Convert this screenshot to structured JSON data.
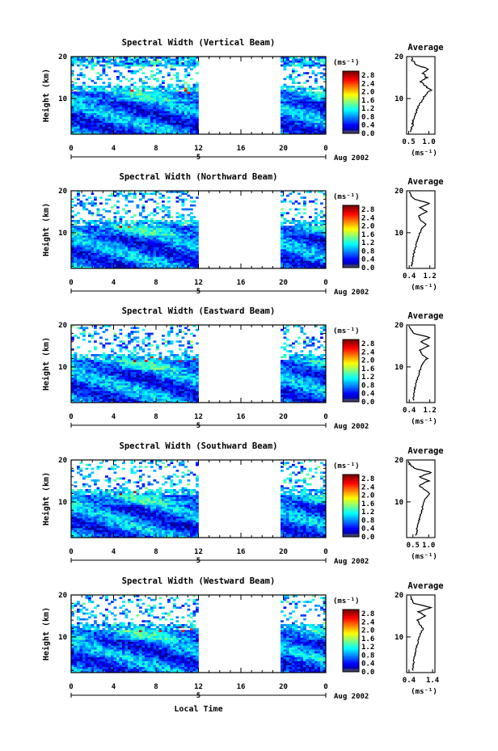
{
  "chart_data": [
    {
      "type": "heatmap",
      "title": "Spectral Width (Vertical Beam)",
      "ylabel": "Height (km)",
      "x_ticks": [
        "0",
        "4",
        "8",
        "12",
        "16",
        "20",
        "0"
      ],
      "y_ticks": [
        "20",
        "10"
      ],
      "xlim": [
        0,
        24
      ],
      "ylim": [
        1.5,
        20
      ],
      "date_label": "5",
      "month_label": "Aug 2002",
      "colorbar": {
        "unit": "(ms⁻¹)",
        "ticks": [
          "2.8",
          "2.4",
          "2.0",
          "1.6",
          "1.2",
          "0.8",
          "0.4",
          "0.0"
        ],
        "range": [
          0,
          3.0
        ]
      },
      "data_gap_hours": [
        12,
        19.5
      ],
      "profile": {
        "title": "Average",
        "unit": "(ms⁻¹)",
        "x_ticks": [
          "0.5",
          "1.0"
        ],
        "xlim": [
          0.45,
          1.15
        ],
        "y_ticks": [
          "20",
          "10"
        ],
        "heights": [
          2,
          3,
          4,
          5,
          6,
          7,
          8,
          9,
          10,
          11,
          12,
          13,
          14,
          15,
          16,
          17,
          18,
          19,
          20
        ],
        "values": [
          0.55,
          0.58,
          0.6,
          0.62,
          0.66,
          0.7,
          0.74,
          0.8,
          0.86,
          0.92,
          1.05,
          0.9,
          0.8,
          0.95,
          0.85,
          1.0,
          0.7,
          0.6,
          0.55
        ]
      }
    },
    {
      "type": "heatmap",
      "title": "Spectral Width (Northward Beam)",
      "ylabel": "Height (km)",
      "x_ticks": [
        "0",
        "4",
        "8",
        "12",
        "16",
        "20",
        "0"
      ],
      "y_ticks": [
        "20",
        "10"
      ],
      "xlim": [
        0,
        24
      ],
      "ylim": [
        1.5,
        20
      ],
      "date_label": "5",
      "month_label": "Aug 2002",
      "colorbar": {
        "unit": "(ms⁻¹)",
        "ticks": [
          "2.8",
          "2.4",
          "2.0",
          "1.6",
          "1.2",
          "0.8",
          "0.4",
          "0.0"
        ],
        "range": [
          0,
          3.0
        ]
      },
      "data_gap_hours": [
        12,
        19.5
      ],
      "profile": {
        "title": "Average",
        "unit": "(ms⁻¹)",
        "x_ticks": [
          "0.4",
          "1.2"
        ],
        "xlim": [
          0.3,
          1.4
        ],
        "y_ticks": [
          "20",
          "10"
        ],
        "heights": [
          2,
          3,
          4,
          5,
          6,
          7,
          8,
          9,
          10,
          11,
          12,
          13,
          14,
          15,
          16,
          17,
          18,
          19,
          20
        ],
        "values": [
          0.5,
          0.52,
          0.55,
          0.58,
          0.62,
          0.66,
          0.7,
          0.75,
          0.82,
          0.9,
          1.05,
          0.85,
          0.75,
          1.1,
          0.8,
          1.2,
          0.6,
          0.45,
          0.4
        ]
      }
    },
    {
      "type": "heatmap",
      "title": "Spectral Width (Eastward Beam)",
      "ylabel": "Height (km)",
      "x_ticks": [
        "0",
        "4",
        "8",
        "12",
        "16",
        "20",
        "0"
      ],
      "y_ticks": [
        "20",
        "10"
      ],
      "xlim": [
        0,
        24
      ],
      "ylim": [
        1.5,
        20
      ],
      "date_label": "5",
      "month_label": "Aug 2002",
      "colorbar": {
        "unit": "(ms⁻¹)",
        "ticks": [
          "2.8",
          "2.4",
          "2.0",
          "1.6",
          "1.2",
          "0.8",
          "0.4",
          "0.0"
        ],
        "range": [
          0,
          3.0
        ]
      },
      "data_gap_hours": [
        12,
        19.5
      ],
      "profile": {
        "title": "Average",
        "unit": "(ms⁻¹)",
        "x_ticks": [
          "0.4",
          "1.2"
        ],
        "xlim": [
          0.3,
          1.4
        ],
        "y_ticks": [
          "20",
          "10"
        ],
        "heights": [
          2,
          3,
          4,
          5,
          6,
          7,
          8,
          9,
          10,
          11,
          12,
          13,
          14,
          15,
          16,
          17,
          18,
          19,
          20
        ],
        "values": [
          0.55,
          0.58,
          0.6,
          0.62,
          0.66,
          0.7,
          0.76,
          0.8,
          0.86,
          0.95,
          1.1,
          0.9,
          0.8,
          1.15,
          0.85,
          1.2,
          0.6,
          0.45,
          0.4
        ]
      }
    },
    {
      "type": "heatmap",
      "title": "Spectral Width (Southward Beam)",
      "ylabel": "Height (km)",
      "x_ticks": [
        "0",
        "4",
        "8",
        "12",
        "16",
        "20",
        "0"
      ],
      "y_ticks": [
        "20",
        "10"
      ],
      "xlim": [
        0,
        24
      ],
      "ylim": [
        1.5,
        20
      ],
      "date_label": "5",
      "month_label": "Aug 2002",
      "colorbar": {
        "unit": "(ms⁻¹)",
        "ticks": [
          "2.8",
          "2.4",
          "2.0",
          "1.6",
          "1.2",
          "0.8",
          "0.4",
          "0.0"
        ],
        "range": [
          0,
          3.0
        ]
      },
      "data_gap_hours": [
        12,
        19.5
      ],
      "profile": {
        "title": "Average",
        "unit": "(ms⁻¹)",
        "x_ticks": [
          "0.5",
          "1.0"
        ],
        "xlim": [
          0.3,
          1.2
        ],
        "y_ticks": [
          "20",
          "10"
        ],
        "heights": [
          2,
          3,
          4,
          5,
          6,
          7,
          8,
          9,
          10,
          11,
          12,
          13,
          14,
          15,
          16,
          17,
          18,
          19,
          20
        ],
        "values": [
          0.6,
          0.62,
          0.64,
          0.66,
          0.7,
          0.74,
          0.78,
          0.82,
          0.86,
          0.9,
          1.05,
          0.85,
          0.7,
          1.0,
          0.7,
          1.1,
          0.55,
          0.4,
          0.35
        ]
      }
    },
    {
      "type": "heatmap",
      "title": "Spectral Width (Westward Beam)",
      "ylabel": "Height (km)",
      "xlabel": "Local Time",
      "x_ticks": [
        "0",
        "4",
        "8",
        "12",
        "16",
        "20",
        "0"
      ],
      "y_ticks": [
        "20",
        "10"
      ],
      "xlim": [
        0,
        24
      ],
      "ylim": [
        1.5,
        20
      ],
      "date_label": "5",
      "month_label": "Aug 2002",
      "colorbar": {
        "unit": "(ms⁻¹)",
        "ticks": [
          "2.8",
          "2.4",
          "2.0",
          "1.6",
          "1.2",
          "0.8",
          "0.4",
          "0.0"
        ],
        "range": [
          0,
          3.0
        ]
      },
      "data_gap_hours": [
        12,
        19.5
      ],
      "profile": {
        "title": "Average",
        "unit": "(ms⁻¹)",
        "x_ticks": [
          "0.4",
          "1.4"
        ],
        "xlim": [
          0.3,
          1.5
        ],
        "y_ticks": [
          "20",
          "10"
        ],
        "heights": [
          2,
          3,
          4,
          5,
          6,
          7,
          8,
          9,
          10,
          11,
          12,
          13,
          14,
          15,
          16,
          17,
          18,
          19,
          20
        ],
        "values": [
          0.55,
          0.58,
          0.6,
          0.62,
          0.66,
          0.7,
          0.74,
          0.78,
          0.82,
          0.9,
          1.0,
          0.85,
          0.75,
          1.1,
          0.8,
          1.35,
          0.6,
          0.5,
          0.45
        ]
      }
    }
  ]
}
